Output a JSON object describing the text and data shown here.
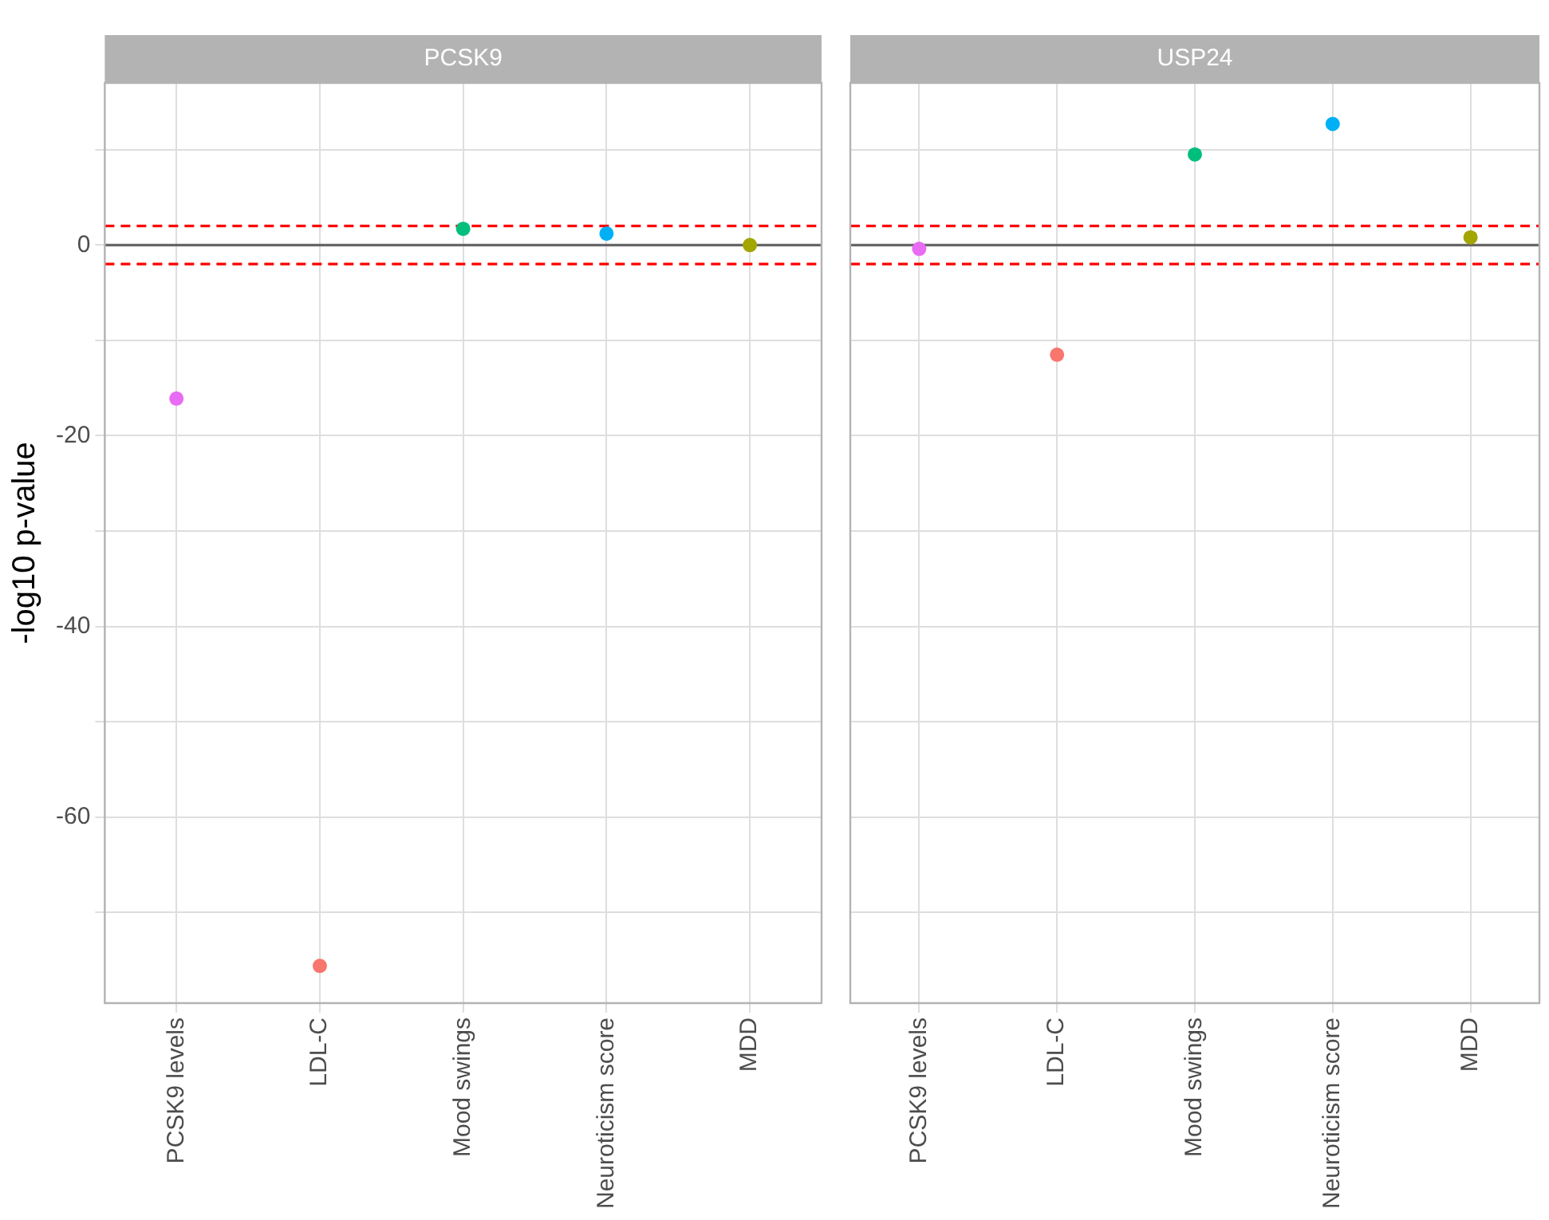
{
  "chart_data": [
    {
      "type": "scatter",
      "title": "PCSK9",
      "ylabel": "-log10 p-value",
      "categories": [
        "PCSK9 levels",
        "LDL-C",
        "Mood swings",
        "Neuroticism score",
        "MDD"
      ],
      "values": [
        -16.1,
        -75.6,
        1.7,
        1.2,
        0
      ],
      "colors": [
        "#e76bf3",
        "#f8766d",
        "#00bf7d",
        "#00b0f6",
        "#a3a500"
      ],
      "marker": "circle",
      "grid": true,
      "ylim": [
        -79.5,
        17
      ],
      "yticks": [
        {
          "value": -70,
          "label": null
        },
        -60,
        {
          "value": -50,
          "label": null
        },
        -40,
        {
          "value": -30,
          "label": null
        },
        -20,
        {
          "value": -10,
          "label": null
        },
        0,
        {
          "value": 10,
          "label": null
        }
      ],
      "ref_lines": [
        {
          "axis": "y",
          "value": 0,
          "color": "#666666",
          "line_style": "solid"
        },
        {
          "axis": "y",
          "value": 2,
          "color": "#ff0000",
          "line_style": "dashed"
        },
        {
          "axis": "y",
          "value": -2,
          "color": "#ff0000",
          "line_style": "dashed"
        }
      ]
    },
    {
      "type": "scatter",
      "title": "USP24",
      "categories": [
        "PCSK9 levels",
        "LDL-C",
        "Mood swings",
        "Neuroticism score",
        "MDD"
      ],
      "values": [
        -0.4,
        -11.5,
        9.5,
        12.7,
        0.8
      ],
      "colors": [
        "#e76bf3",
        "#f8766d",
        "#00bf7d",
        "#00b0f6",
        "#a3a500"
      ],
      "marker": "circle",
      "grid": true,
      "tick_labels": "x",
      "ylim": [
        -79.5,
        17
      ],
      "yticks": [
        {
          "value": -70,
          "label": null
        },
        -60,
        {
          "value": -50,
          "label": null
        },
        -40,
        {
          "value": -30,
          "label": null
        },
        -20,
        {
          "value": -10,
          "label": null
        },
        0,
        {
          "value": 10,
          "label": null
        }
      ],
      "ref_lines": [
        {
          "axis": "y",
          "value": 0,
          "color": "#666666",
          "line_style": "solid"
        },
        {
          "axis": "y",
          "value": 2,
          "color": "#ff0000",
          "line_style": "dashed"
        },
        {
          "axis": "y",
          "value": -2,
          "color": "#ff0000",
          "line_style": "dashed"
        }
      ]
    }
  ]
}
